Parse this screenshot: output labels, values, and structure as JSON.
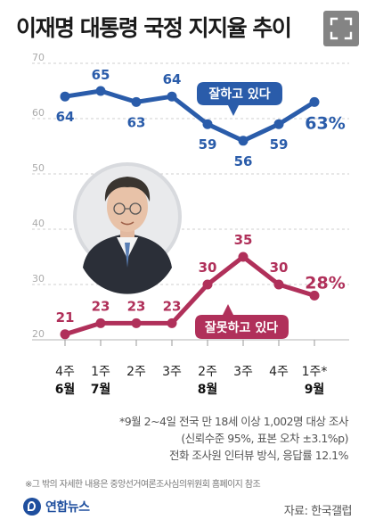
{
  "header": {
    "title": "이재명 대통령 국정 지지율 추이"
  },
  "chart_data": {
    "type": "line",
    "title": "이재명 대통령 국정 지지율 추이",
    "x_labels": [
      [
        "4주",
        "6월"
      ],
      [
        "1주",
        "7월"
      ],
      [
        "2주",
        ""
      ],
      [
        "3주",
        ""
      ],
      [
        "2주",
        "8월"
      ],
      [
        "3주",
        ""
      ],
      [
        "4주",
        ""
      ],
      [
        "1주*",
        "9월"
      ]
    ],
    "y_ticks": [
      20,
      30,
      40,
      50,
      60,
      70
    ],
    "ylim": [
      20,
      70
    ],
    "grid": "horizontal-dashed",
    "series": [
      {
        "name": "잘하고 있다",
        "color": "#2a5caa",
        "values": [
          64,
          65,
          63,
          64,
          59,
          56,
          59,
          63
        ],
        "last_label": "63%"
      },
      {
        "name": "잘못하고 있다",
        "color": "#b0305a",
        "values": [
          21,
          23,
          23,
          23,
          30,
          35,
          30,
          28
        ],
        "last_label": "28%"
      }
    ]
  },
  "notes": [
    "*9월 2~4일 전국 만 18세 이상 1,002명 대상 조사",
    "(신뢰수준 95%, 표본 오차 ±3.1%p)",
    "전화 조사원 인터뷰 방식, 응답률 12.1%"
  ],
  "footnote": "※그 밖의 자세한 내용은 중앙선거여론조사심의위원회 홈페이지 참조",
  "brand": {
    "logo_text": "연합뉴스",
    "color": "#1f4f9e"
  },
  "source": "자료: 한국갤럽"
}
